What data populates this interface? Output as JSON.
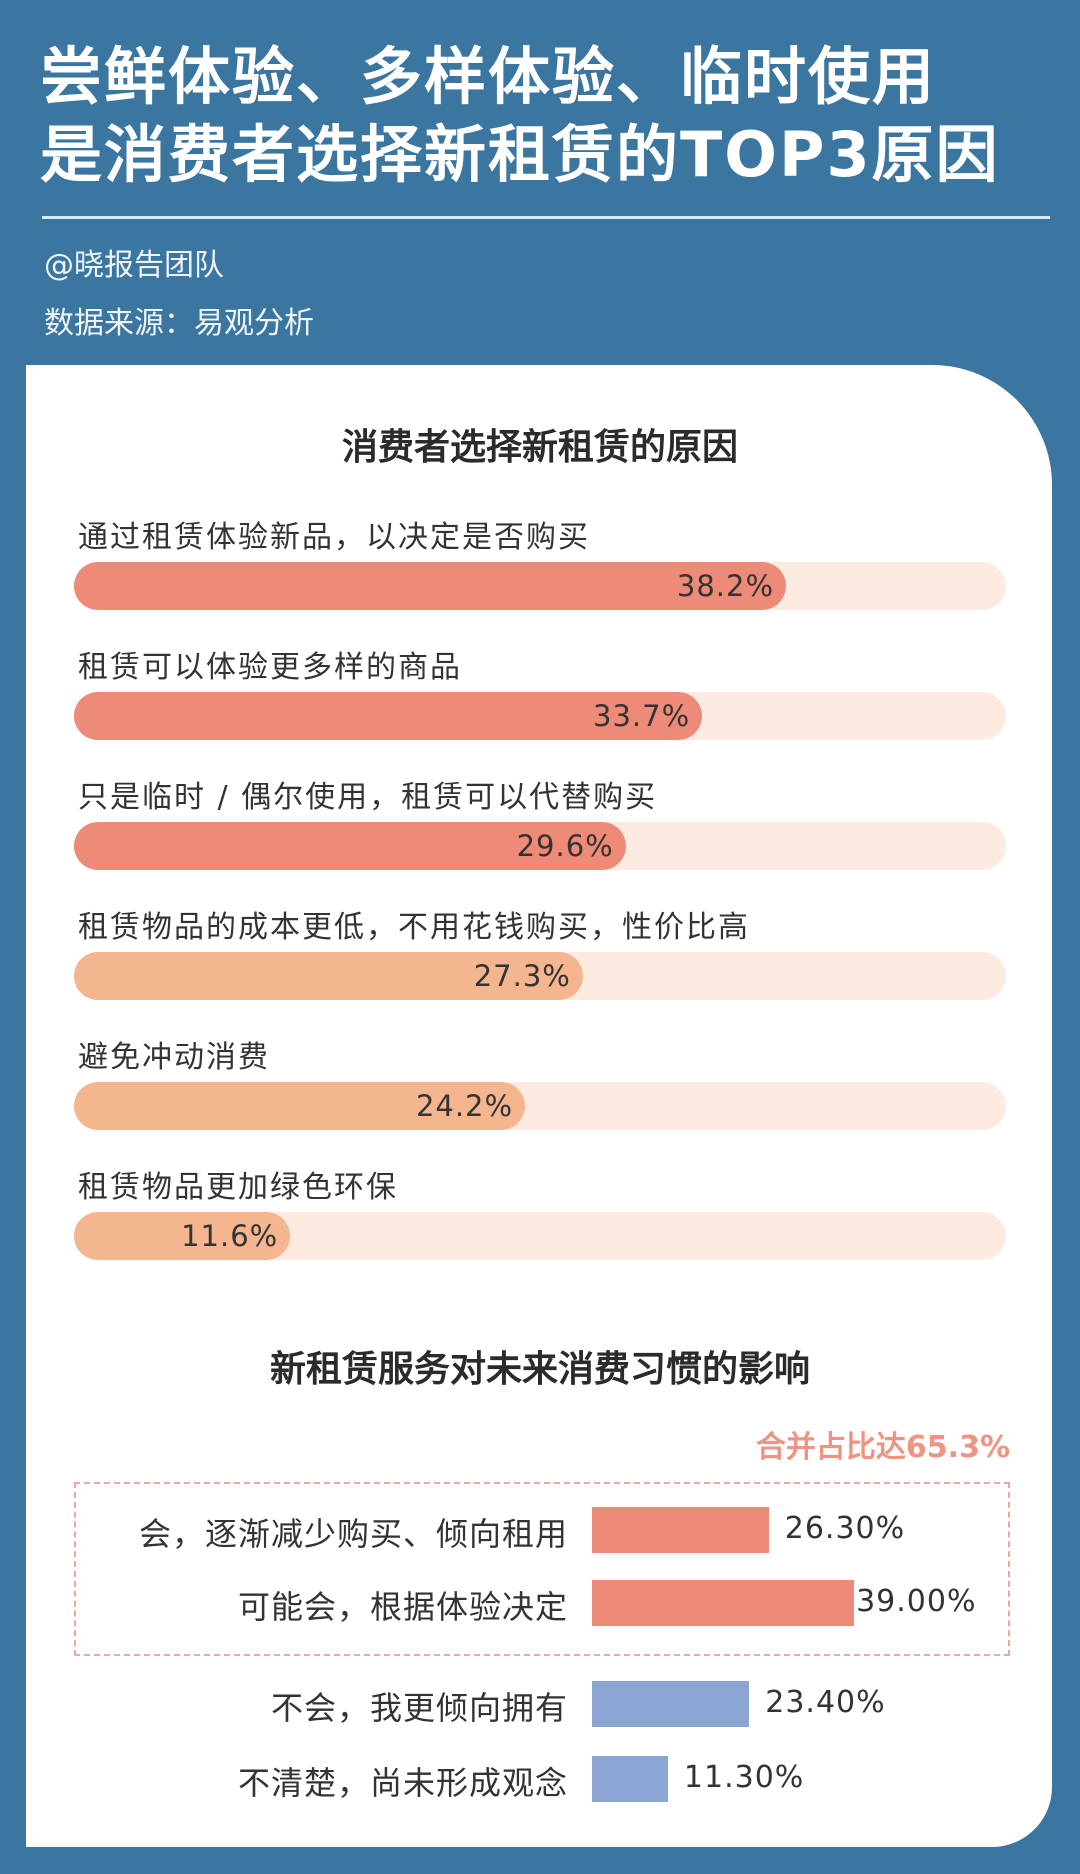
{
  "header": {
    "title_line1": "尝鲜体验、多样体验、临时使用",
    "title_line2": "是消费者选择新租赁的TOP3原因",
    "author": "@晓报告团队",
    "source": "数据来源：易观分析"
  },
  "colors": {
    "background": "#3a76a0",
    "top3": "#ee8a78",
    "other": "#f4b58f",
    "track": "#fdebe2",
    "yes": "#ee8a78",
    "no": "#8ca6d3",
    "note": "#ee9482"
  },
  "chart_data": [
    {
      "type": "bar",
      "orientation": "horizontal",
      "title": "消费者选择新租赁的原因",
      "xlim": [
        0,
        50
      ],
      "categories": [
        "通过租赁体验新品，以决定是否购买",
        "租赁可以体验更多样的商品",
        "只是临时 / 偶尔使用，租赁可以代替购买",
        "租赁物品的成本更低，不用花钱购买，性价比高",
        "避免冲动消费",
        "租赁物品更加绿色环保"
      ],
      "values": [
        38.2,
        33.7,
        29.6,
        27.3,
        24.2,
        11.6
      ],
      "labels": [
        "38.2%",
        "33.7%",
        "29.6%",
        "27.3%",
        "24.2%",
        "11.6%"
      ]
    },
    {
      "type": "bar",
      "orientation": "horizontal",
      "title": "新租赁服务对未来消费习惯的影响",
      "annotation": "合并占比达65.3%",
      "categories": [
        "会，逐渐减少购买、倾向租用",
        "可能会，根据体验决定",
        "不会，我更倾向拥有",
        "不清楚，尚未形成观念"
      ],
      "values": [
        26.3,
        39.0,
        23.4,
        11.3
      ],
      "labels": [
        "26.30%",
        "39.00%",
        "23.40%",
        "11.30%"
      ]
    }
  ]
}
